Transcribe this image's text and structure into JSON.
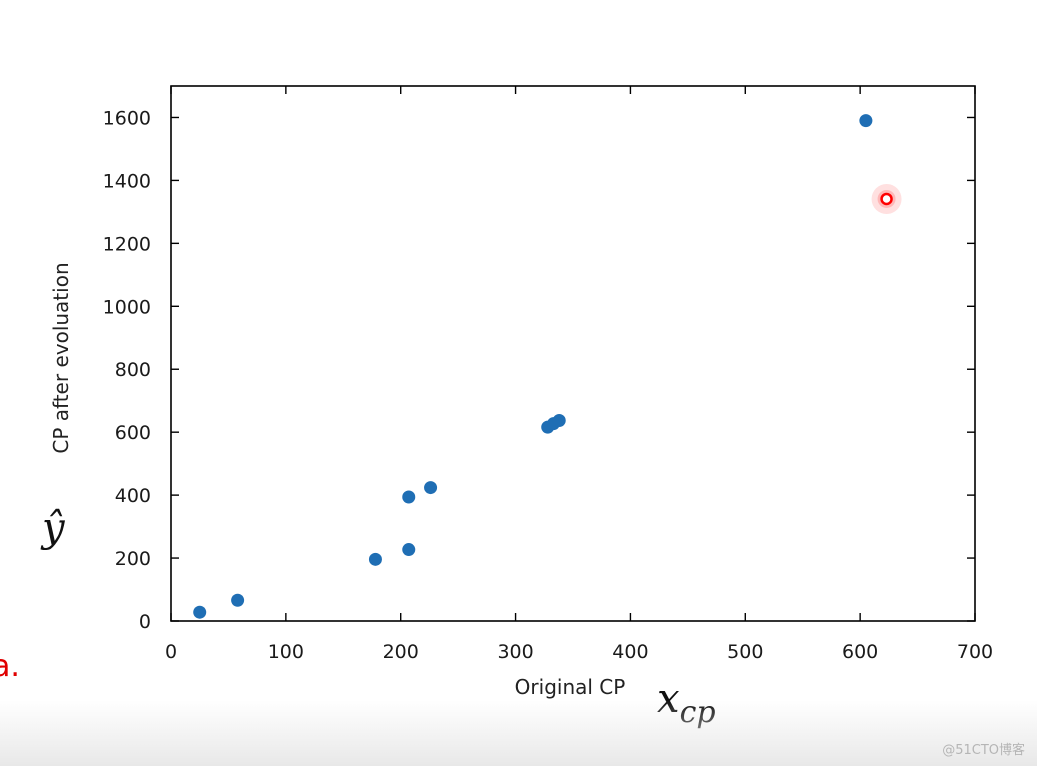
{
  "chart_data": {
    "type": "scatter",
    "xlabel": "Original CP",
    "ylabel": "CP after evoluation",
    "xlim": [
      0,
      700
    ],
    "ylim": [
      0,
      1700
    ],
    "x_ticks": [
      0,
      100,
      200,
      300,
      400,
      500,
      600,
      700
    ],
    "y_ticks": [
      0,
      200,
      400,
      600,
      800,
      1000,
      1200,
      1400,
      1600
    ],
    "grid": false,
    "series": [
      {
        "color": "#1f6eb4",
        "points": [
          {
            "x": 25,
            "y": 28
          },
          {
            "x": 58,
            "y": 66
          },
          {
            "x": 178,
            "y": 196
          },
          {
            "x": 207,
            "y": 227
          },
          {
            "x": 207,
            "y": 394
          },
          {
            "x": 226,
            "y": 424
          },
          {
            "x": 328,
            "y": 616
          },
          {
            "x": 333,
            "y": 627
          },
          {
            "x": 338,
            "y": 637
          },
          {
            "x": 605,
            "y": 1590
          }
        ]
      },
      {
        "color": "#ff0000",
        "highlight": true,
        "points": [
          {
            "x": 623,
            "y": 1341
          }
        ]
      }
    ],
    "annotations": {
      "y_hat": "ŷ",
      "x_cp_base": "x",
      "x_cp_sub": "cp",
      "cut_off_text": "a."
    }
  },
  "watermark": "@51CTO博客"
}
